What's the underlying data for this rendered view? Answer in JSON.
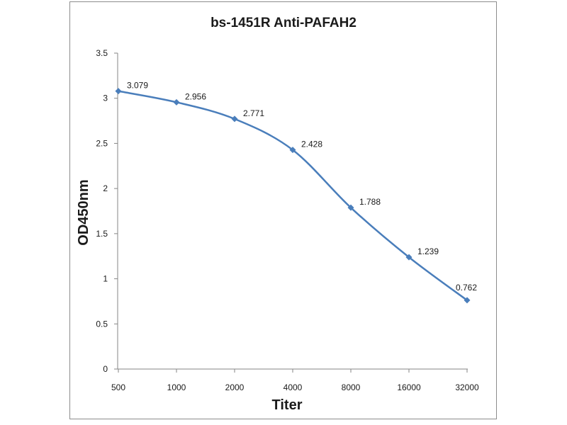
{
  "chart_data": {
    "type": "line",
    "title": "bs-1451R Anti-PAFAH2",
    "xlabel": "Titer",
    "ylabel": "OD450nm",
    "categories": [
      "500",
      "1000",
      "2000",
      "4000",
      "8000",
      "16000",
      "32000"
    ],
    "yticks": [
      "0",
      "0.5",
      "1",
      "1.5",
      "2",
      "2.5",
      "3",
      "3.5"
    ],
    "ylim": [
      0,
      3.5
    ],
    "grid": false,
    "series": [
      {
        "values": [
          3.079,
          2.956,
          2.771,
          2.428,
          1.788,
          1.239,
          0.762
        ],
        "labels": [
          "3.079",
          "2.956",
          "2.771",
          "2.428",
          "1.788",
          "1.239",
          "0.762"
        ],
        "color": "#4a7ebb"
      }
    ],
    "axis_color": "#868686"
  }
}
